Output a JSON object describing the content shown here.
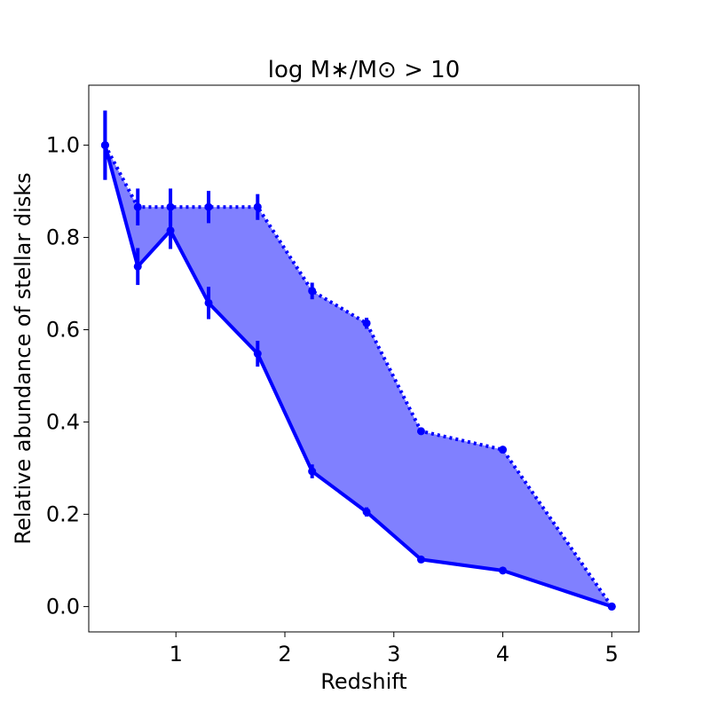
{
  "chart_data": {
    "type": "line",
    "title": "log M∗/M⊙ > 10",
    "xlabel": "Redshift",
    "ylabel": "Relative abundance of stellar disks",
    "xlim": [
      0.2,
      5.25
    ],
    "ylim": [
      -0.055,
      1.13
    ],
    "xticks": [
      1,
      2,
      3,
      4,
      5
    ],
    "yticks": [
      0.0,
      0.2,
      0.4,
      0.6,
      0.8,
      1.0
    ],
    "ytick_labels": [
      "0.0",
      "0.2",
      "0.4",
      "0.6",
      "0.8",
      "1.0"
    ],
    "grid": false,
    "legend": "none",
    "fill_color": "#8080ff",
    "line_color": "#0000ff",
    "series": [
      {
        "style": "dotted",
        "x": [
          0.35,
          0.65,
          0.95,
          1.3,
          1.75,
          2.25,
          2.75,
          3.25,
          4.0,
          5.0
        ],
        "y": [
          1.0,
          0.866,
          0.866,
          0.866,
          0.866,
          0.684,
          0.614,
          0.38,
          0.34,
          0.0
        ],
        "err": [
          0.075,
          0.04,
          0.04,
          0.035,
          0.028,
          0.018,
          0.012,
          0.008,
          0.008,
          0.004
        ]
      },
      {
        "style": "solid",
        "x": [
          0.35,
          0.65,
          0.95,
          1.3,
          1.75,
          2.25,
          2.75,
          3.25,
          4.0,
          5.0
        ],
        "y": [
          1.0,
          0.737,
          0.815,
          0.658,
          0.548,
          0.293,
          0.205,
          0.102,
          0.078,
          0.0
        ],
        "err": [
          0.075,
          0.04,
          0.04,
          0.035,
          0.028,
          0.015,
          0.01,
          0.006,
          0.006,
          0.004
        ]
      }
    ]
  }
}
